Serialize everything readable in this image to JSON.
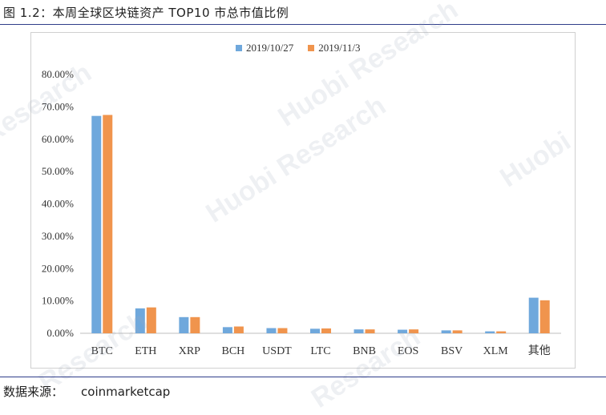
{
  "figure_title": "图 1.2：本周全球区块链资产 TOP10 市总市值比例",
  "source": {
    "label": "数据来源：",
    "value": "coinmarketcap"
  },
  "watermarks": [
    "Research",
    "Huobi Research",
    "Huobi Research",
    "Huobi",
    "Research",
    "Research"
  ],
  "chart_data": {
    "type": "bar",
    "categories": [
      "BTC",
      "ETH",
      "XRP",
      "BCH",
      "USDT",
      "LTC",
      "BNB",
      "EOS",
      "BSV",
      "XLM",
      "其他"
    ],
    "series": [
      {
        "name": "2019/10/27",
        "color": "#6fa8dc",
        "values": [
          67.2,
          7.7,
          5.0,
          1.9,
          1.6,
          1.4,
          1.2,
          1.1,
          0.9,
          0.6,
          11.0
        ]
      },
      {
        "name": "2019/11/3",
        "color": "#f0944d",
        "values": [
          67.5,
          8.0,
          5.0,
          2.1,
          1.6,
          1.5,
          1.2,
          1.2,
          0.9,
          0.6,
          10.2
        ]
      }
    ],
    "ylim": [
      0,
      80
    ],
    "yticks": [
      "0.00%",
      "10.00%",
      "20.00%",
      "30.00%",
      "40.00%",
      "50.00%",
      "60.00%",
      "70.00%",
      "80.00%"
    ],
    "grid": false,
    "legend_position": "top-center"
  }
}
